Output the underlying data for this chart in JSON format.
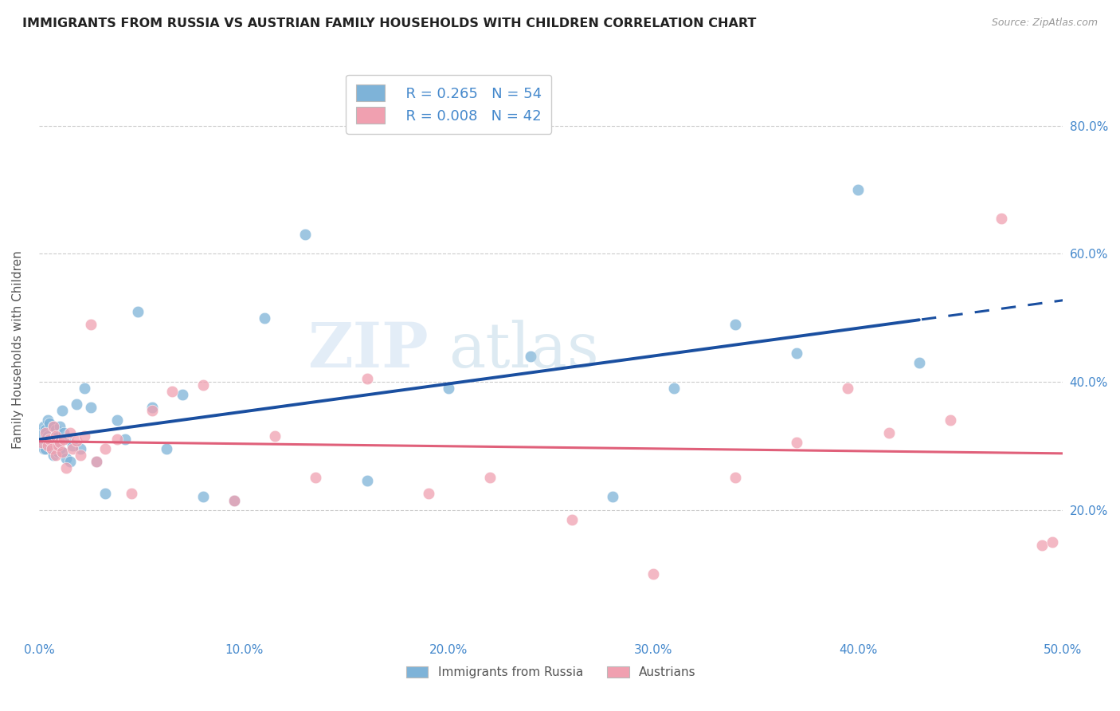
{
  "title": "IMMIGRANTS FROM RUSSIA VS AUSTRIAN FAMILY HOUSEHOLDS WITH CHILDREN CORRELATION CHART",
  "source": "Source: ZipAtlas.com",
  "ylabel": "Family Households with Children",
  "xlim": [
    0.0,
    0.5
  ],
  "ylim": [
    0.0,
    0.9
  ],
  "xticks": [
    0.0,
    0.1,
    0.2,
    0.3,
    0.4,
    0.5
  ],
  "yticks": [
    0.2,
    0.4,
    0.6,
    0.8
  ],
  "xtick_labels": [
    "0.0%",
    "10.0%",
    "20.0%",
    "30.0%",
    "40.0%",
    "50.0%"
  ],
  "ytick_labels": [
    "20.0%",
    "40.0%",
    "60.0%",
    "80.0%"
  ],
  "legend_labels": [
    "Immigrants from Russia",
    "Austrians"
  ],
  "legend_r1": "R = 0.265",
  "legend_n1": "N = 54",
  "legend_r2": "R = 0.008",
  "legend_n2": "N = 42",
  "blue_color": "#7EB3D8",
  "pink_color": "#F0A0B0",
  "blue_line_color": "#1A4FA0",
  "pink_line_color": "#E0607A",
  "axis_tick_color": "#4488CC",
  "blue_x": [
    0.001,
    0.001,
    0.002,
    0.002,
    0.003,
    0.003,
    0.003,
    0.004,
    0.004,
    0.005,
    0.005,
    0.006,
    0.006,
    0.007,
    0.007,
    0.007,
    0.008,
    0.008,
    0.009,
    0.009,
    0.01,
    0.01,
    0.011,
    0.011,
    0.012,
    0.013,
    0.014,
    0.015,
    0.016,
    0.018,
    0.02,
    0.022,
    0.025,
    0.028,
    0.032,
    0.038,
    0.042,
    0.048,
    0.055,
    0.062,
    0.07,
    0.08,
    0.095,
    0.11,
    0.13,
    0.16,
    0.2,
    0.24,
    0.28,
    0.31,
    0.34,
    0.37,
    0.4,
    0.43
  ],
  "blue_y": [
    0.305,
    0.32,
    0.295,
    0.33,
    0.31,
    0.325,
    0.295,
    0.315,
    0.34,
    0.3,
    0.335,
    0.295,
    0.31,
    0.33,
    0.305,
    0.285,
    0.3,
    0.325,
    0.29,
    0.315,
    0.295,
    0.33,
    0.29,
    0.355,
    0.32,
    0.28,
    0.31,
    0.275,
    0.3,
    0.365,
    0.295,
    0.39,
    0.36,
    0.275,
    0.225,
    0.34,
    0.31,
    0.51,
    0.36,
    0.295,
    0.38,
    0.22,
    0.215,
    0.5,
    0.63,
    0.245,
    0.39,
    0.44,
    0.22,
    0.39,
    0.49,
    0.445,
    0.7,
    0.43
  ],
  "pink_x": [
    0.001,
    0.003,
    0.004,
    0.005,
    0.006,
    0.007,
    0.008,
    0.008,
    0.009,
    0.01,
    0.011,
    0.012,
    0.013,
    0.015,
    0.016,
    0.018,
    0.02,
    0.022,
    0.025,
    0.028,
    0.032,
    0.038,
    0.045,
    0.055,
    0.065,
    0.08,
    0.095,
    0.115,
    0.135,
    0.16,
    0.19,
    0.22,
    0.26,
    0.3,
    0.34,
    0.37,
    0.395,
    0.415,
    0.445,
    0.47,
    0.49,
    0.495
  ],
  "pink_y": [
    0.305,
    0.32,
    0.3,
    0.31,
    0.295,
    0.33,
    0.285,
    0.315,
    0.3,
    0.305,
    0.29,
    0.31,
    0.265,
    0.32,
    0.295,
    0.308,
    0.285,
    0.315,
    0.49,
    0.275,
    0.295,
    0.31,
    0.225,
    0.355,
    0.385,
    0.395,
    0.215,
    0.315,
    0.25,
    0.405,
    0.225,
    0.25,
    0.185,
    0.1,
    0.25,
    0.305,
    0.39,
    0.32,
    0.34,
    0.655,
    0.145,
    0.15
  ]
}
